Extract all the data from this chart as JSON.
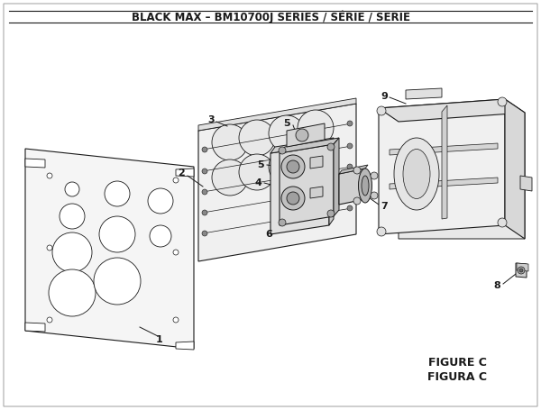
{
  "title": "BLACK MAX – BM10700J SERIES / SÉRIE / SERIE",
  "title_fontsize": 8.5,
  "title_fontweight": "bold",
  "figure_c_label": "FIGURE C",
  "figura_c_label": "FIGURA C",
  "label_fontsize": 8.5,
  "annotation_fontsize": 8.0,
  "bg_color": "#ffffff",
  "line_color": "#1a1a1a",
  "fig_width": 6.0,
  "fig_height": 4.55
}
